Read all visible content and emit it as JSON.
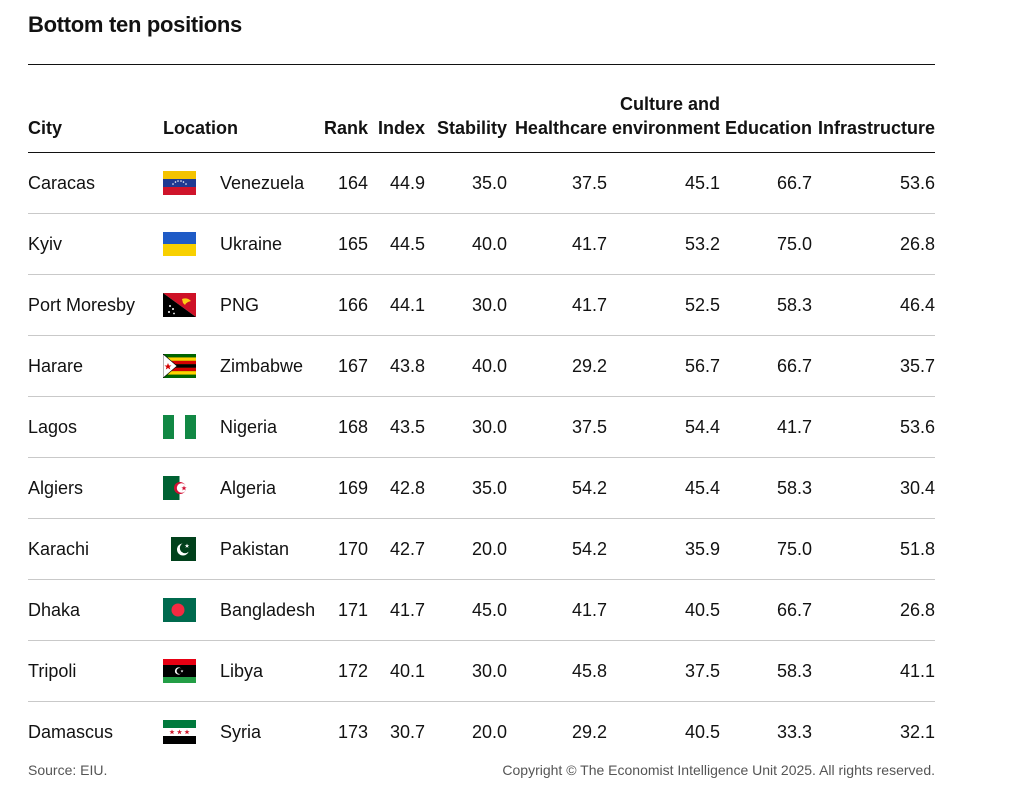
{
  "title": "Bottom ten positions",
  "columns": {
    "city": "City",
    "location": "Location",
    "rank": "Rank",
    "index": "Index",
    "stability": "Stability",
    "healthcare": "Healthcare",
    "culture_line1": "Culture and",
    "culture_line2": "environment",
    "education": "Education",
    "infrastructure": "Infrastructure"
  },
  "chart_data": {
    "type": "table",
    "title": "Bottom ten positions",
    "rows": [
      {
        "city": "Caracas",
        "location": "Venezuela",
        "flag": "venezuela-flag",
        "rank": "164",
        "index": "44.9",
        "stability": "35.0",
        "healthcare": "37.5",
        "culture": "45.1",
        "education": "66.7",
        "infrastructure": "53.6"
      },
      {
        "city": "Kyiv",
        "location": "Ukraine",
        "flag": "ukraine-flag",
        "rank": "165",
        "index": "44.5",
        "stability": "40.0",
        "healthcare": "41.7",
        "culture": "53.2",
        "education": "75.0",
        "infrastructure": "26.8"
      },
      {
        "city": "Port Moresby",
        "location": "PNG",
        "flag": "png-flag",
        "rank": "166",
        "index": "44.1",
        "stability": "30.0",
        "healthcare": "41.7",
        "culture": "52.5",
        "education": "58.3",
        "infrastructure": "46.4"
      },
      {
        "city": "Harare",
        "location": "Zimbabwe",
        "flag": "zimbabwe-flag",
        "rank": "167",
        "index": "43.8",
        "stability": "40.0",
        "healthcare": "29.2",
        "culture": "56.7",
        "education": "66.7",
        "infrastructure": "35.7"
      },
      {
        "city": "Lagos",
        "location": "Nigeria",
        "flag": "nigeria-flag",
        "rank": "168",
        "index": "43.5",
        "stability": "30.0",
        "healthcare": "37.5",
        "culture": "54.4",
        "education": "41.7",
        "infrastructure": "53.6"
      },
      {
        "city": "Algiers",
        "location": "Algeria",
        "flag": "algeria-flag",
        "rank": "169",
        "index": "42.8",
        "stability": "35.0",
        "healthcare": "54.2",
        "culture": "45.4",
        "education": "58.3",
        "infrastructure": "30.4"
      },
      {
        "city": "Karachi",
        "location": "Pakistan",
        "flag": "pakistan-flag",
        "rank": "170",
        "index": "42.7",
        "stability": "20.0",
        "healthcare": "54.2",
        "culture": "35.9",
        "education": "75.0",
        "infrastructure": "51.8"
      },
      {
        "city": "Dhaka",
        "location": "Bangladesh",
        "flag": "bangladesh-flag",
        "rank": "171",
        "index": "41.7",
        "stability": "45.0",
        "healthcare": "41.7",
        "culture": "40.5",
        "education": "66.7",
        "infrastructure": "26.8"
      },
      {
        "city": "Tripoli",
        "location": "Libya",
        "flag": "libya-flag",
        "rank": "172",
        "index": "40.1",
        "stability": "30.0",
        "healthcare": "45.8",
        "culture": "37.5",
        "education": "58.3",
        "infrastructure": "41.1"
      },
      {
        "city": "Damascus",
        "location": "Syria",
        "flag": "syria-flag",
        "rank": "173",
        "index": "30.7",
        "stability": "20.0",
        "healthcare": "29.2",
        "culture": "40.5",
        "education": "33.3",
        "infrastructure": "32.1"
      }
    ]
  },
  "footer": {
    "source": "Source: EIU.",
    "copyright": "Copyright © The Economist Intelligence Unit 2025. All rights reserved."
  }
}
